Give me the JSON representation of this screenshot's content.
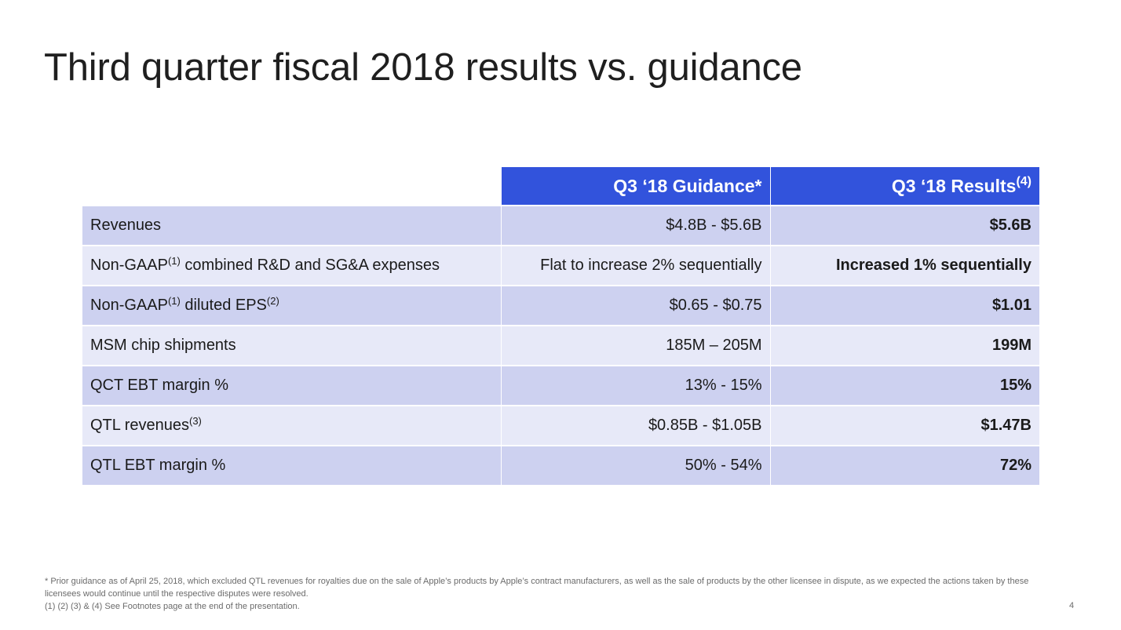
{
  "title": "Third quarter fiscal 2018 results vs. guidance",
  "table": {
    "headers": {
      "guidance": "Q3 ‘18 Guidance*",
      "results": "Q3 ‘18 Results",
      "results_sup": "(4)"
    },
    "rows": [
      {
        "metric": "Revenues",
        "guidance": "$4.8B - $5.6B",
        "result": "$5.6B"
      },
      {
        "metric_prefix": "Non-GAAP",
        "metric_sup": "(1)",
        "metric_suffix": " combined R&D and SG&A expenses",
        "guidance": "Flat to increase 2% sequentially",
        "result": "Increased 1% sequentially"
      },
      {
        "metric_prefix": "Non-GAAP",
        "metric_sup": "(1)",
        "metric_suffix": " diluted EPS",
        "metric_sup2": "(2)",
        "guidance": "$0.65 - $0.75",
        "result": "$1.01"
      },
      {
        "metric": "MSM chip shipments",
        "guidance": "185M – 205M",
        "result": "199M"
      },
      {
        "metric": "QCT EBT margin %",
        "guidance": "13% - 15%",
        "result": "15%"
      },
      {
        "metric_prefix": "QTL revenues",
        "metric_sup": "(3)",
        "guidance": "$0.85B - $1.05B",
        "result": "$1.47B"
      },
      {
        "metric": "QTL EBT margin %",
        "guidance": "50% - 54%",
        "result": "72%"
      }
    ]
  },
  "footnotes": {
    "prior_guidance": "* Prior guidance as of April 25, 2018, which excluded QTL revenues for royalties due on the sale of Apple’s products by Apple’s contract manufacturers, as well as the sale of products by the other licensee in dispute, as we expected the actions taken by these licensees would continue until the respective disputes were resolved.",
    "see_footnotes": "(1) (2) (3) & (4) See Footnotes page at the end of the presentation."
  },
  "page_number": "4",
  "colors": {
    "header_blue": "#3253dc",
    "row_dark": "#cdd1f0",
    "row_light": "#e7e9f8"
  }
}
